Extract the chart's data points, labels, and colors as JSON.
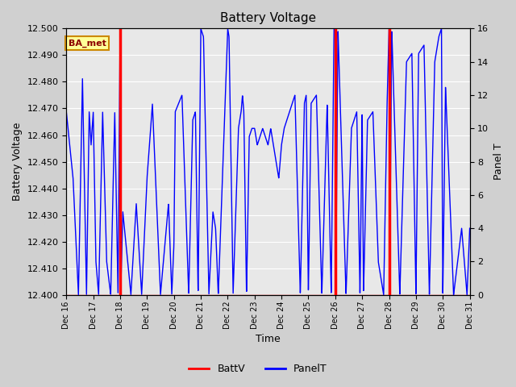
{
  "title": "Battery Voltage",
  "xlabel": "Time",
  "ylabel_left": "Battery Voltage",
  "ylabel_right": "Panel T",
  "ylim_left": [
    12.4,
    12.5
  ],
  "ylim_right": [
    0,
    16
  ],
  "fig_facecolor": "#d0d0d0",
  "plot_bg_color": "#e8e8e8",
  "annotation_label": "BA_met",
  "annotation_bg": "#ffff99",
  "annotation_border": "#cc8800",
  "x_start": 16,
  "x_end": 31,
  "x_ticks": [
    16,
    17,
    18,
    19,
    20,
    21,
    22,
    23,
    24,
    25,
    26,
    27,
    28,
    29,
    30,
    31
  ],
  "x_tick_labels": [
    "Dec 16",
    "Dec 17",
    "Dec 18",
    "Dec 19",
    "Dec 20",
    "Dec 21",
    "Dec 22",
    "Dec 23",
    "Dec 24",
    "Dec 25",
    "Dec 26",
    "Dec 27",
    "Dec 28",
    "Dec 29",
    "Dec 30",
    "Dec 31"
  ],
  "red_vlines": [
    18.0,
    26.0,
    28.0
  ],
  "panel_t_scale": 16,
  "legend_items": [
    {
      "label": "BattV",
      "color": "red"
    },
    {
      "label": "PanelT",
      "color": "blue"
    }
  ],
  "keypoints_t": [
    16.0,
    16.25,
    16.45,
    16.6,
    16.75,
    16.85,
    16.92,
    17.0,
    17.1,
    17.2,
    17.35,
    17.5,
    17.65,
    17.8,
    17.92,
    18.0,
    18.02,
    18.1,
    18.4,
    18.6,
    18.8,
    19.0,
    19.2,
    19.5,
    19.8,
    19.92,
    20.0,
    20.05,
    20.3,
    20.55,
    20.7,
    20.8,
    20.9,
    21.0,
    21.1,
    21.3,
    21.45,
    21.55,
    21.65,
    22.0,
    22.05,
    22.2,
    22.4,
    22.5,
    22.55,
    22.6,
    22.7,
    22.8,
    22.9,
    23.0,
    23.1,
    23.3,
    23.5,
    23.6,
    23.7,
    23.8,
    23.9,
    24.0,
    24.1,
    24.3,
    24.5,
    24.7,
    24.85,
    24.92,
    25.0,
    25.1,
    25.3,
    25.5,
    25.7,
    25.85,
    25.95,
    26.0,
    26.02,
    26.1,
    26.4,
    26.6,
    26.8,
    26.92,
    27.0,
    27.05,
    27.2,
    27.4,
    27.6,
    27.8,
    27.92,
    28.0,
    28.02,
    28.1,
    28.4,
    28.65,
    28.85,
    29.0,
    29.1,
    29.3,
    29.5,
    29.7,
    29.85,
    29.95,
    30.0,
    30.1,
    30.4,
    30.7,
    30.9,
    31.0
  ],
  "keypoints_v": [
    11,
    7,
    0,
    13,
    0,
    11,
    9,
    11,
    2,
    0,
    11,
    2,
    0,
    11,
    0,
    16,
    0,
    5,
    0,
    5.5,
    0,
    7,
    11.5,
    0,
    5.5,
    0,
    3,
    11,
    12,
    0,
    10.5,
    11,
    0,
    16,
    15.5,
    0,
    5,
    4,
    0,
    16,
    15.5,
    0,
    10,
    11,
    12,
    11,
    0,
    9.5,
    10,
    10,
    9,
    10,
    9,
    10,
    9,
    8,
    7,
    9,
    10,
    11,
    12,
    0,
    11.5,
    12,
    0,
    11.5,
    12,
    0,
    11.5,
    0,
    16,
    16,
    0,
    16,
    0,
    10,
    11,
    0,
    11,
    0,
    10.5,
    11,
    2,
    0,
    11,
    16,
    0,
    16,
    0,
    14,
    14.5,
    0,
    14.5,
    15,
    0,
    14,
    15.5,
    16,
    0,
    12.5,
    0,
    4,
    0,
    4
  ]
}
